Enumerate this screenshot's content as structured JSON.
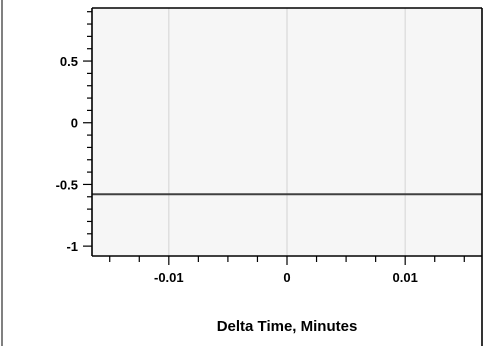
{
  "chart_data": {
    "type": "line",
    "title": "",
    "xlabel": "Delta Time, Minutes",
    "ylabel": "",
    "xlim": [
      -0.0165,
      0.0165
    ],
    "ylim": [
      -1.08,
      0.93
    ],
    "x_ticks": [
      -0.01,
      0,
      0.01
    ],
    "x_tick_labels": [
      "-0.01",
      "0",
      "0.01"
    ],
    "y_ticks": [
      0.5,
      0,
      -0.5,
      -1
    ],
    "y_tick_labels": [
      "0.5",
      "0",
      "-0.5",
      "-1"
    ],
    "grid": "vertical",
    "legend": "none",
    "series": [
      {
        "x": [
          -0.0165,
          0.0165
        ],
        "y": [
          -0.58,
          -0.58
        ],
        "color": "#404040"
      }
    ]
  },
  "colors": {
    "plot_background": "#f6f6f6",
    "gridline": "#d9d9d9",
    "frame": "#000000"
  }
}
